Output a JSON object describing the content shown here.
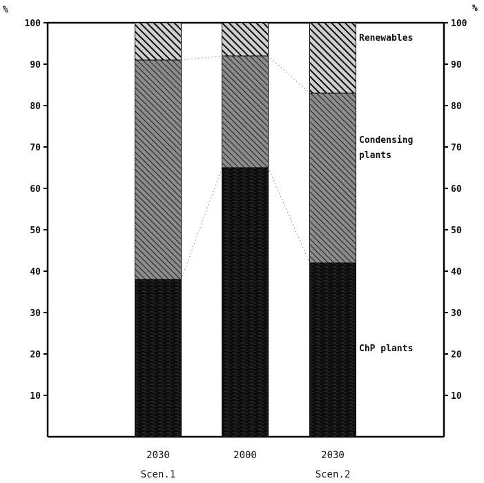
{
  "chart_data": {
    "type": "bar",
    "stacked": true,
    "y_unit_left": "%",
    "y_unit_right": "%",
    "ylim": [
      0,
      100
    ],
    "yticks_left": [
      10,
      20,
      30,
      40,
      50,
      60,
      70,
      80,
      90,
      100
    ],
    "yticks_right": [
      10,
      20,
      30,
      40,
      50,
      60,
      70,
      80,
      90,
      100
    ],
    "categories": [
      {
        "year": "2030",
        "scenario": "Scen.1"
      },
      {
        "year": "2000",
        "scenario": ""
      },
      {
        "year": "2030",
        "scenario": "Scen.2"
      }
    ],
    "series": [
      {
        "name": "ChP plants",
        "values": [
          38,
          65,
          42
        ]
      },
      {
        "name": "Condensing plants",
        "values": [
          53,
          27,
          41
        ]
      },
      {
        "name": "Renewables",
        "values": [
          9,
          8,
          17
        ]
      }
    ],
    "segment_labels": [
      {
        "lines": [
          "ChP plants"
        ],
        "at_value": 21.5
      },
      {
        "lines": [
          "Condensing",
          "plants"
        ],
        "at_value": 70
      },
      {
        "lines": [
          "Renewables"
        ],
        "at_value": 96.5
      }
    ],
    "colors": {
      "chp": "#111111",
      "condensing": "#6a6a6a",
      "renewables": "#2b2b2b",
      "axis": "#000000"
    },
    "grid": false,
    "connector_lines": "dotted"
  }
}
